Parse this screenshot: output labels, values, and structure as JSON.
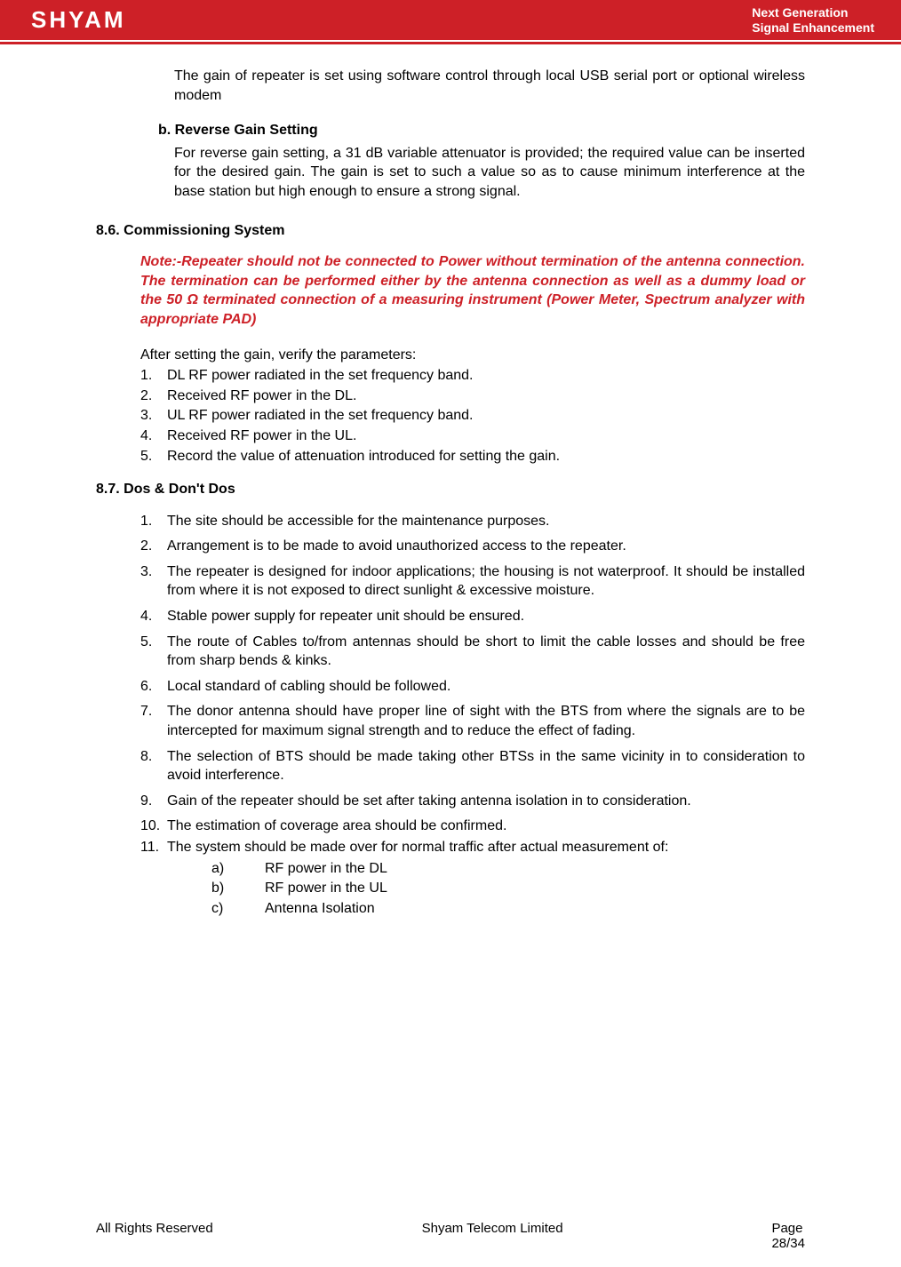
{
  "header": {
    "brand": "SHYAM",
    "tagline_l1": "Next Generation",
    "tagline_l2": "Signal Enhancement",
    "bg_color": "#cd2027",
    "text_color": "#ffffff"
  },
  "body": {
    "para1": "The gain of repeater is set using software control through local USB serial port or optional wireless modem",
    "sub_b_label": "b.  Reverse Gain Setting",
    "sub_b_body": "For reverse gain setting, a 31 dB variable attenuator is provided; the required value can be inserted for the desired gain. The gain is set to such a value so as to cause minimum interference at the base station but high enough to ensure a strong signal.",
    "sec86_head": "8.6. Commissioning System",
    "note": " Note:-Repeater should not be connected to Power without termination of the antenna connection. The termination can be performed either by the antenna connection as well as a dummy load or the 50 Ω terminated connection of a measuring instrument (Power Meter, Spectrum analyzer with appropriate PAD)",
    "note_color": "#cd2027",
    "after_setting": "After setting the gain, verify the parameters:",
    "verify_list": [
      {
        "n": "1.",
        "t": "DL RF power radiated in the set frequency band."
      },
      {
        "n": "2.",
        "t": "Received RF power in the DL."
      },
      {
        "n": "3.",
        "t": "UL RF power radiated in the set frequency band."
      },
      {
        "n": "4.",
        "t": "Received RF power in the UL."
      },
      {
        "n": "5.",
        "t": "Record the value of attenuation introduced for setting the gain."
      }
    ],
    "sec87_head": "8.7. Dos & Don't Dos",
    "dos_list": [
      {
        "n": "1.",
        "t": "The site should be accessible for the maintenance purposes."
      },
      {
        "n": "2.",
        "t": "Arrangement is to be made to avoid unauthorized access to the repeater."
      },
      {
        "n": "3.",
        "t": "The repeater is designed for indoor applications; the housing is not waterproof. It should be installed from where it is not exposed to direct sunlight & excessive moisture."
      },
      {
        "n": "4.",
        "t": "Stable power supply for repeater unit should be ensured."
      },
      {
        "n": "5.",
        "t": "The route of Cables to/from antennas should be short to limit the cable losses and should be free from sharp bends & kinks."
      },
      {
        "n": "6.",
        "t": "Local standard of cabling should be followed."
      },
      {
        "n": "7.",
        "t": "The donor antenna should have proper line of sight with the BTS from where the signals are to be intercepted for maximum signal strength and to reduce the effect of fading."
      },
      {
        "n": "8.",
        "t": "The selection of BTS should be made taking other BTSs in the same vicinity in to consideration to avoid interference."
      },
      {
        "n": "9.",
        "t": "Gain of the repeater should be set after taking antenna isolation in to consideration."
      },
      {
        "n": "10.",
        "t": "The estimation of coverage area should be confirmed."
      },
      {
        "n": "11.",
        "t": "The system should be made over for normal traffic after actual measurement of:"
      }
    ],
    "sub_letters": [
      {
        "l": "a)",
        "t": "RF power in the DL"
      },
      {
        "l": "b)",
        "t": "RF power in the UL"
      },
      {
        "l": "c)",
        "t": "Antenna Isolation"
      }
    ]
  },
  "footer": {
    "left": "All Rights Reserved",
    "center": "Shyam Telecom Limited",
    "right_l1": "Page",
    "right_l2": "28/34"
  }
}
